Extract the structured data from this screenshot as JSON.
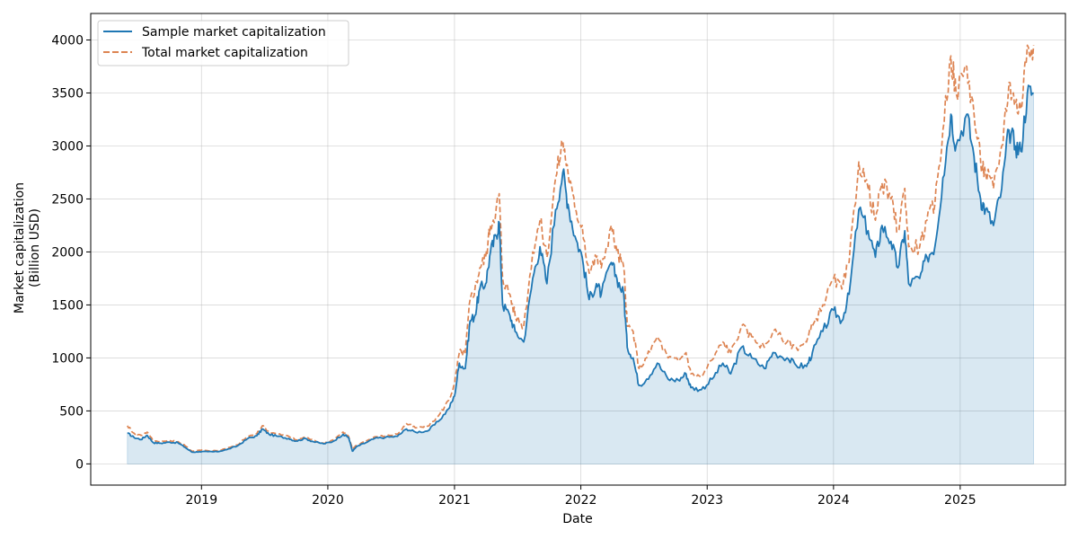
{
  "chart_data": {
    "type": "line",
    "title": "",
    "xlabel": "Date",
    "ylabel": "Market capitalization\n(Billion USD)",
    "x_ticks": [
      "2019",
      "2020",
      "2021",
      "2022",
      "2023",
      "2024",
      "2025"
    ],
    "y_ticks": [
      0,
      500,
      1000,
      1500,
      2000,
      2500,
      3000,
      3500,
      4000
    ],
    "ylim": [
      -200,
      4250
    ],
    "xlim": [
      "2018-02-15",
      "2025-11-01"
    ],
    "grid": true,
    "legend_position": "top-left",
    "series": [
      {
        "name": "Sample market capitalization",
        "color": "#1f77b4",
        "style": "solid",
        "fill": true,
        "points": [
          [
            "2018-06-01",
            290
          ],
          [
            "2018-06-20",
            250
          ],
          [
            "2018-07-10",
            230
          ],
          [
            "2018-07-28",
            270
          ],
          [
            "2018-08-15",
            200
          ],
          [
            "2018-09-05",
            195
          ],
          [
            "2018-10-01",
            205
          ],
          [
            "2018-10-25",
            200
          ],
          [
            "2018-11-15",
            155
          ],
          [
            "2018-12-05",
            110
          ],
          [
            "2018-12-25",
            115
          ],
          [
            "2019-01-20",
            115
          ],
          [
            "2019-02-15",
            115
          ],
          [
            "2019-03-15",
            135
          ],
          [
            "2019-04-15",
            170
          ],
          [
            "2019-05-15",
            240
          ],
          [
            "2019-06-10",
            265
          ],
          [
            "2019-06-26",
            330
          ],
          [
            "2019-07-15",
            280
          ],
          [
            "2019-08-10",
            260
          ],
          [
            "2019-09-10",
            240
          ],
          [
            "2019-10-01",
            215
          ],
          [
            "2019-10-28",
            240
          ],
          [
            "2019-11-20",
            210
          ],
          [
            "2019-12-20",
            190
          ],
          [
            "2020-01-15",
            210
          ],
          [
            "2020-02-14",
            280
          ],
          [
            "2020-03-01",
            250
          ],
          [
            "2020-03-12",
            120
          ],
          [
            "2020-03-25",
            165
          ],
          [
            "2020-04-20",
            200
          ],
          [
            "2020-05-15",
            240
          ],
          [
            "2020-06-15",
            250
          ],
          [
            "2020-07-20",
            260
          ],
          [
            "2020-08-15",
            330
          ],
          [
            "2020-09-10",
            300
          ],
          [
            "2020-10-15",
            310
          ],
          [
            "2020-11-15",
            400
          ],
          [
            "2020-12-15",
            520
          ],
          [
            "2021-01-01",
            640
          ],
          [
            "2021-01-15",
            950
          ],
          [
            "2021-02-01",
            900
          ],
          [
            "2021-02-15",
            1350
          ],
          [
            "2021-03-01",
            1400
          ],
          [
            "2021-03-15",
            1650
          ],
          [
            "2021-04-01",
            1700
          ],
          [
            "2021-04-15",
            2000
          ],
          [
            "2021-05-01",
            2150
          ],
          [
            "2021-05-10",
            2280
          ],
          [
            "2021-05-20",
            1500
          ],
          [
            "2021-06-10",
            1400
          ],
          [
            "2021-06-25",
            1250
          ],
          [
            "2021-07-20",
            1150
          ],
          [
            "2021-08-15",
            1750
          ],
          [
            "2021-09-05",
            2050
          ],
          [
            "2021-09-25",
            1700
          ],
          [
            "2021-10-20",
            2400
          ],
          [
            "2021-11-10",
            2750
          ],
          [
            "2021-11-25",
            2450
          ],
          [
            "2021-12-15",
            2150
          ],
          [
            "2022-01-05",
            1950
          ],
          [
            "2022-01-25",
            1550
          ],
          [
            "2022-02-15",
            1700
          ],
          [
            "2022-03-01",
            1600
          ],
          [
            "2022-03-30",
            1900
          ],
          [
            "2022-04-15",
            1750
          ],
          [
            "2022-05-05",
            1600
          ],
          [
            "2022-05-15",
            1100
          ],
          [
            "2022-06-01",
            1000
          ],
          [
            "2022-06-18",
            740
          ],
          [
            "2022-07-10",
            800
          ],
          [
            "2022-08-10",
            950
          ],
          [
            "2022-09-10",
            800
          ],
          [
            "2022-10-10",
            790
          ],
          [
            "2022-11-01",
            850
          ],
          [
            "2022-11-15",
            720
          ],
          [
            "2022-12-15",
            700
          ],
          [
            "2023-01-15",
            800
          ],
          [
            "2023-02-15",
            950
          ],
          [
            "2023-03-10",
            850
          ],
          [
            "2023-04-10",
            1100
          ],
          [
            "2023-05-10",
            1000
          ],
          [
            "2023-06-15",
            900
          ],
          [
            "2023-07-10",
            1050
          ],
          [
            "2023-08-20",
            1000
          ],
          [
            "2023-09-15",
            930
          ],
          [
            "2023-10-15",
            920
          ],
          [
            "2023-11-01",
            1050
          ],
          [
            "2023-12-01",
            1250
          ],
          [
            "2024-01-01",
            1450
          ],
          [
            "2024-01-25",
            1350
          ],
          [
            "2024-02-15",
            1600
          ],
          [
            "2024-03-14",
            2400
          ],
          [
            "2024-04-10",
            2200
          ],
          [
            "2024-05-01",
            1950
          ],
          [
            "2024-05-20",
            2250
          ],
          [
            "2024-06-15",
            2100
          ],
          [
            "2024-07-05",
            1850
          ],
          [
            "2024-07-25",
            2200
          ],
          [
            "2024-08-05",
            1700
          ],
          [
            "2024-09-06",
            1750
          ],
          [
            "2024-09-27",
            1950
          ],
          [
            "2024-10-20",
            2050
          ],
          [
            "2024-11-12",
            2700
          ],
          [
            "2024-12-05",
            3300
          ],
          [
            "2024-12-20",
            3000
          ],
          [
            "2025-01-20",
            3300
          ],
          [
            "2025-02-10",
            2900
          ],
          [
            "2025-03-01",
            2500
          ],
          [
            "2025-03-15",
            2400
          ],
          [
            "2025-04-07",
            2250
          ],
          [
            "2025-05-01",
            2600
          ],
          [
            "2025-05-22",
            3150
          ],
          [
            "2025-06-10",
            3000
          ],
          [
            "2025-06-25",
            2950
          ],
          [
            "2025-07-14",
            3500
          ],
          [
            "2025-08-01",
            3500
          ]
        ]
      },
      {
        "name": "Total market capitalization",
        "color": "#dd8452",
        "style": "dashed",
        "fill": false,
        "points": [
          [
            "2018-06-01",
            360
          ],
          [
            "2018-06-20",
            290
          ],
          [
            "2018-07-10",
            270
          ],
          [
            "2018-07-28",
            300
          ],
          [
            "2018-08-15",
            220
          ],
          [
            "2018-09-05",
            210
          ],
          [
            "2018-10-01",
            220
          ],
          [
            "2018-10-25",
            210
          ],
          [
            "2018-11-15",
            170
          ],
          [
            "2018-12-05",
            120
          ],
          [
            "2018-12-25",
            130
          ],
          [
            "2019-01-20",
            125
          ],
          [
            "2019-02-15",
            125
          ],
          [
            "2019-03-15",
            145
          ],
          [
            "2019-04-15",
            180
          ],
          [
            "2019-05-15",
            260
          ],
          [
            "2019-06-10",
            285
          ],
          [
            "2019-06-26",
            360
          ],
          [
            "2019-07-15",
            300
          ],
          [
            "2019-08-10",
            280
          ],
          [
            "2019-09-10",
            260
          ],
          [
            "2019-10-01",
            225
          ],
          [
            "2019-10-28",
            255
          ],
          [
            "2019-11-20",
            220
          ],
          [
            "2019-12-20",
            195
          ],
          [
            "2020-01-15",
            225
          ],
          [
            "2020-02-14",
            300
          ],
          [
            "2020-03-01",
            260
          ],
          [
            "2020-03-12",
            140
          ],
          [
            "2020-03-25",
            180
          ],
          [
            "2020-04-20",
            215
          ],
          [
            "2020-05-15",
            255
          ],
          [
            "2020-06-15",
            265
          ],
          [
            "2020-07-20",
            280
          ],
          [
            "2020-08-15",
            380
          ],
          [
            "2020-09-10",
            340
          ],
          [
            "2020-10-15",
            355
          ],
          [
            "2020-11-15",
            450
          ],
          [
            "2020-12-15",
            600
          ],
          [
            "2021-01-01",
            750
          ],
          [
            "2021-01-15",
            1050
          ],
          [
            "2021-02-01",
            1050
          ],
          [
            "2021-02-15",
            1550
          ],
          [
            "2021-03-01",
            1650
          ],
          [
            "2021-03-15",
            1850
          ],
          [
            "2021-04-01",
            1950
          ],
          [
            "2021-04-15",
            2250
          ],
          [
            "2021-05-01",
            2400
          ],
          [
            "2021-05-10",
            2550
          ],
          [
            "2021-05-20",
            1750
          ],
          [
            "2021-06-10",
            1600
          ],
          [
            "2021-06-25",
            1400
          ],
          [
            "2021-07-20",
            1300
          ],
          [
            "2021-08-15",
            2000
          ],
          [
            "2021-09-05",
            2300
          ],
          [
            "2021-09-25",
            1950
          ],
          [
            "2021-10-20",
            2700
          ],
          [
            "2021-11-10",
            3050
          ],
          [
            "2021-11-25",
            2750
          ],
          [
            "2021-12-15",
            2400
          ],
          [
            "2022-01-05",
            2250
          ],
          [
            "2022-01-25",
            1800
          ],
          [
            "2022-02-15",
            1950
          ],
          [
            "2022-03-01",
            1850
          ],
          [
            "2022-03-30",
            2250
          ],
          [
            "2022-04-15",
            2000
          ],
          [
            "2022-05-05",
            1850
          ],
          [
            "2022-05-15",
            1300
          ],
          [
            "2022-06-01",
            1250
          ],
          [
            "2022-06-18",
            900
          ],
          [
            "2022-07-10",
            1000
          ],
          [
            "2022-08-10",
            1200
          ],
          [
            "2022-09-10",
            1000
          ],
          [
            "2022-10-10",
            970
          ],
          [
            "2022-11-01",
            1050
          ],
          [
            "2022-11-15",
            850
          ],
          [
            "2022-12-15",
            820
          ],
          [
            "2023-01-15",
            980
          ],
          [
            "2023-02-15",
            1150
          ],
          [
            "2023-03-10",
            1050
          ],
          [
            "2023-04-10",
            1300
          ],
          [
            "2023-05-10",
            1200
          ],
          [
            "2023-06-15",
            1100
          ],
          [
            "2023-07-10",
            1250
          ],
          [
            "2023-08-20",
            1150
          ],
          [
            "2023-09-15",
            1100
          ],
          [
            "2023-10-15",
            1150
          ],
          [
            "2023-11-01",
            1300
          ],
          [
            "2023-12-01",
            1500
          ],
          [
            "2024-01-01",
            1750
          ],
          [
            "2024-01-25",
            1650
          ],
          [
            "2024-02-15",
            1900
          ],
          [
            "2024-03-14",
            2850
          ],
          [
            "2024-04-10",
            2600
          ],
          [
            "2024-05-01",
            2300
          ],
          [
            "2024-05-20",
            2650
          ],
          [
            "2024-06-15",
            2500
          ],
          [
            "2024-07-05",
            2200
          ],
          [
            "2024-07-25",
            2600
          ],
          [
            "2024-08-05",
            2050
          ],
          [
            "2024-09-06",
            2050
          ],
          [
            "2024-09-27",
            2300
          ],
          [
            "2024-10-20",
            2450
          ],
          [
            "2024-11-12",
            3150
          ],
          [
            "2024-12-05",
            3850
          ],
          [
            "2024-12-20",
            3500
          ],
          [
            "2025-01-20",
            3750
          ],
          [
            "2025-02-10",
            3300
          ],
          [
            "2025-03-01",
            2850
          ],
          [
            "2025-03-15",
            2750
          ],
          [
            "2025-04-07",
            2600
          ],
          [
            "2025-05-01",
            3000
          ],
          [
            "2025-05-22",
            3600
          ],
          [
            "2025-06-10",
            3400
          ],
          [
            "2025-06-25",
            3350
          ],
          [
            "2025-07-14",
            3950
          ],
          [
            "2025-08-01",
            3950
          ]
        ]
      }
    ]
  }
}
